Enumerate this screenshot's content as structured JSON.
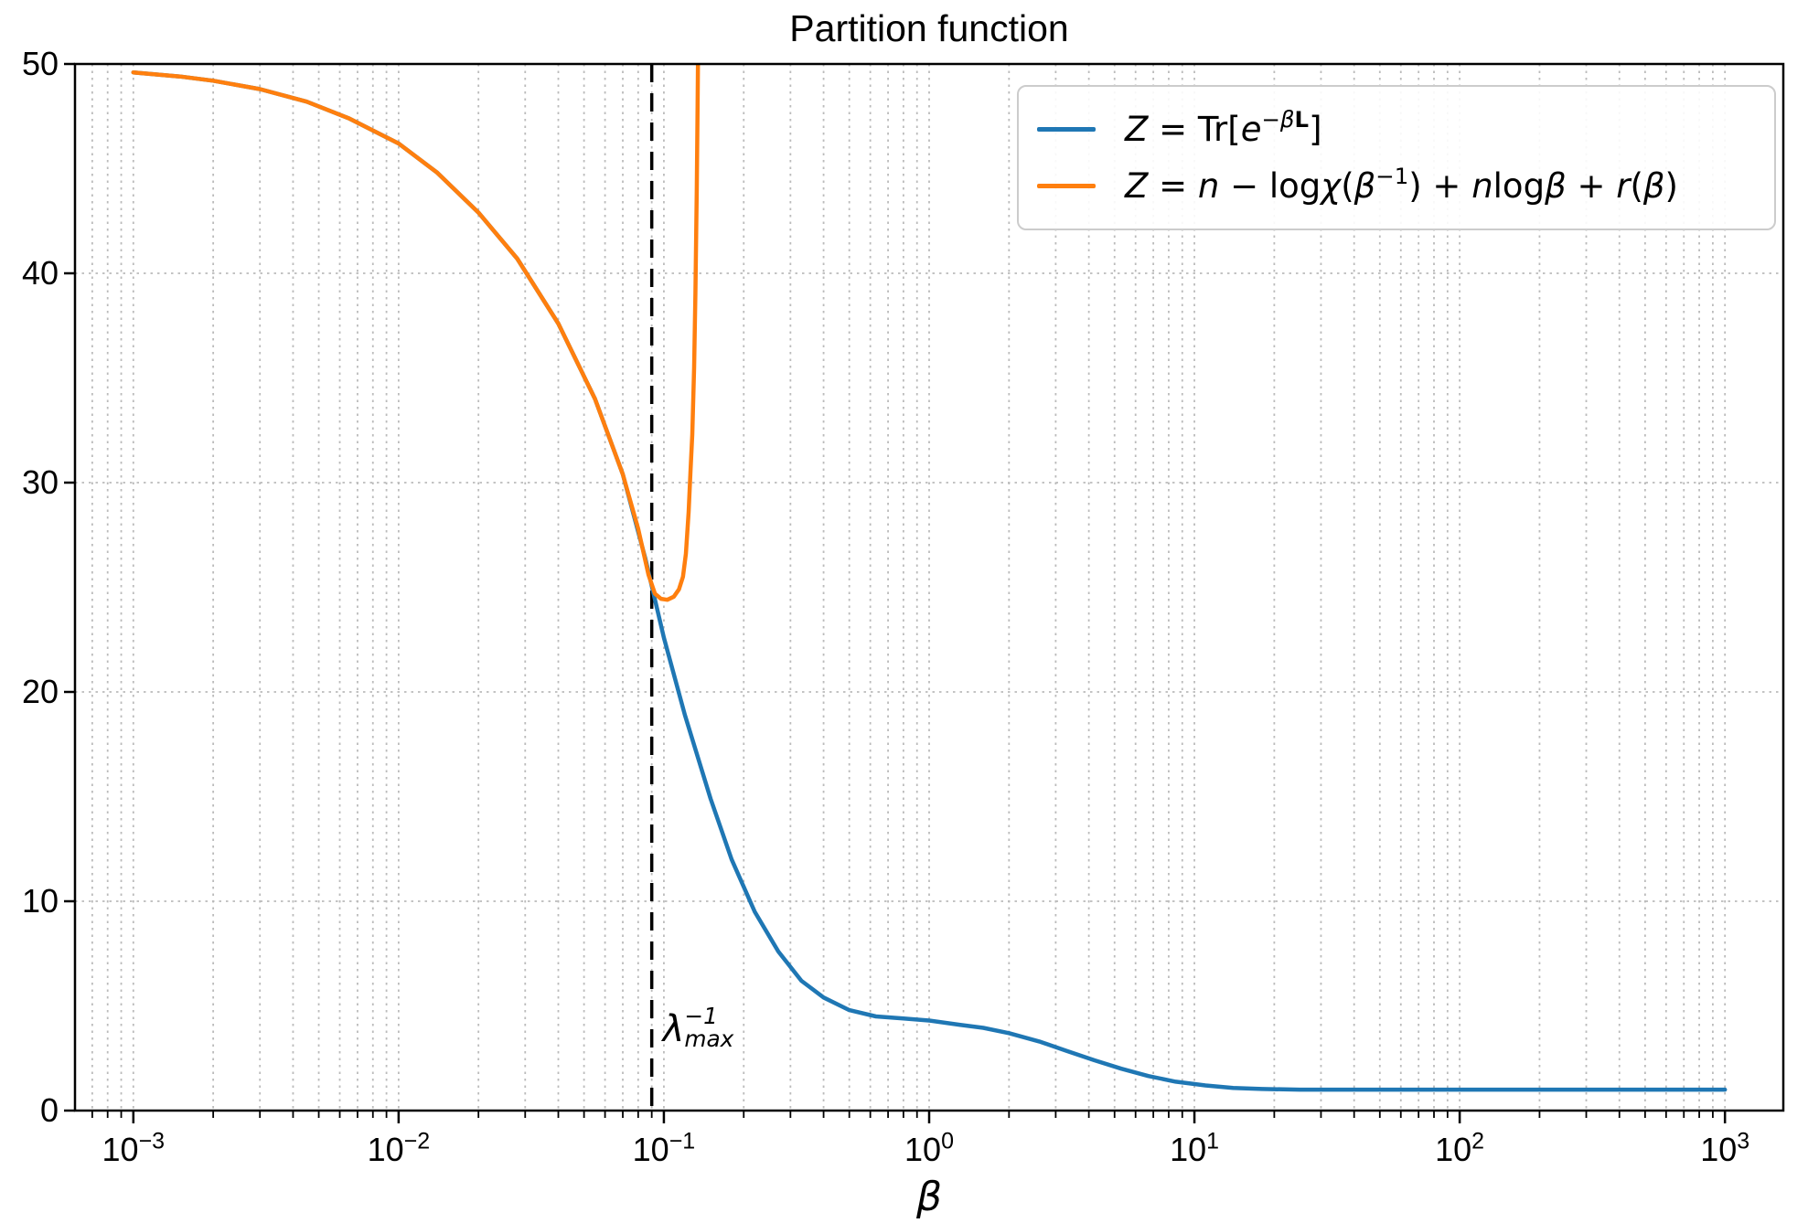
{
  "title": "Partition function",
  "xlabel": "β",
  "colors": {
    "series_blue": "#1f77b4",
    "series_orange": "#ff7f0e",
    "grid": "#bbbbbb",
    "axis": "#000000",
    "vline": "#000000",
    "legend_border": "#cccccc"
  },
  "axes": {
    "x_scale": "log",
    "x_log_min": -3.22,
    "x_log_max": 3.22,
    "y_min": 0,
    "y_max": 50,
    "x_major_ticks": [
      {
        "base": "10",
        "exp": "−3",
        "log": -3
      },
      {
        "base": "10",
        "exp": "−2",
        "log": -2
      },
      {
        "base": "10",
        "exp": "−1",
        "log": -1
      },
      {
        "base": "10",
        "exp": "0",
        "log": 0
      },
      {
        "base": "10",
        "exp": "1",
        "log": 1
      },
      {
        "base": "10",
        "exp": "2",
        "log": 2
      },
      {
        "base": "10",
        "exp": "3",
        "log": 3
      }
    ],
    "y_ticks": [
      "0",
      "10",
      "20",
      "30",
      "40",
      "50"
    ],
    "y_grid_values": [
      10,
      20,
      30,
      40
    ],
    "grid": "both-dotted"
  },
  "legend": {
    "entries": [
      {
        "color_key": "series_blue",
        "plain": "Z = Tr[e^(-βL)]",
        "tokens": [
          {
            "t": "Z",
            "s": "i"
          },
          {
            "t": " = ",
            "s": "u"
          },
          {
            "t": "Tr[",
            "s": "u"
          },
          {
            "t": "e",
            "s": "i"
          },
          {
            "t": "−",
            "s": "su"
          },
          {
            "t": "β",
            "s": "si"
          },
          {
            "t": "L",
            "s": "sb"
          },
          {
            "t": "]",
            "s": "u"
          }
        ]
      },
      {
        "color_key": "series_orange",
        "plain": "Z = n − logχ(β^−1) + nlogβ + r(β)",
        "tokens": [
          {
            "t": "Z",
            "s": "i"
          },
          {
            "t": " = ",
            "s": "u"
          },
          {
            "t": "n",
            "s": "i"
          },
          {
            "t": " − ",
            "s": "u"
          },
          {
            "t": "log",
            "s": "u"
          },
          {
            "t": "χ",
            "s": "i"
          },
          {
            "t": "(",
            "s": "u"
          },
          {
            "t": "β",
            "s": "i"
          },
          {
            "t": "−1",
            "s": "su"
          },
          {
            "t": ")",
            "s": "u"
          },
          {
            "t": " + ",
            "s": "u"
          },
          {
            "t": "n",
            "s": "i"
          },
          {
            "t": "log",
            "s": "u"
          },
          {
            "t": "β",
            "s": "i"
          },
          {
            "t": " + ",
            "s": "u"
          },
          {
            "t": "r",
            "s": "i"
          },
          {
            "t": "(",
            "s": "u"
          },
          {
            "t": "β",
            "s": "i"
          },
          {
            "t": ")",
            "s": "u"
          }
        ]
      }
    ]
  },
  "annotation": {
    "plain": "λ_max^−1",
    "tokens": [
      {
        "t": "λ",
        "s": "i"
      },
      {
        "stack": true,
        "sup": "−1",
        "sub": "max"
      }
    ]
  },
  "chart_data": {
    "type": "line",
    "xscale": "log",
    "xlim": [
      0.001,
      1000
    ],
    "ylim": [
      0,
      50
    ],
    "title": "Partition function",
    "xlabel": "β",
    "ylabel": "",
    "grid": true,
    "legend_position": "upper right",
    "vline": {
      "x": 0.09,
      "style": "dashed",
      "color": "#000000",
      "label": "λ_max^−1"
    },
    "series": [
      {
        "name": "Z = Tr[e^(-βL)]",
        "color": "#1f77b4",
        "points": [
          [
            0.001,
            49.6
          ],
          [
            0.0015,
            49.4
          ],
          [
            0.002,
            49.2
          ],
          [
            0.003,
            48.8
          ],
          [
            0.0045,
            48.2
          ],
          [
            0.0065,
            47.4
          ],
          [
            0.01,
            46.2
          ],
          [
            0.014,
            44.8
          ],
          [
            0.02,
            42.9
          ],
          [
            0.028,
            40.7
          ],
          [
            0.04,
            37.6
          ],
          [
            0.055,
            34.0
          ],
          [
            0.07,
            30.4
          ],
          [
            0.085,
            26.4
          ],
          [
            0.1,
            22.6
          ],
          [
            0.12,
            18.9
          ],
          [
            0.15,
            14.9
          ],
          [
            0.18,
            12.0
          ],
          [
            0.22,
            9.5
          ],
          [
            0.27,
            7.6
          ],
          [
            0.33,
            6.2
          ],
          [
            0.4,
            5.4
          ],
          [
            0.5,
            4.8
          ],
          [
            0.63,
            4.5
          ],
          [
            0.8,
            4.4
          ],
          [
            1.0,
            4.3
          ],
          [
            1.3,
            4.1
          ],
          [
            1.6,
            3.95
          ],
          [
            2.0,
            3.7
          ],
          [
            2.6,
            3.3
          ],
          [
            3.3,
            2.85
          ],
          [
            4.2,
            2.4
          ],
          [
            5.3,
            2.0
          ],
          [
            6.7,
            1.65
          ],
          [
            8.5,
            1.38
          ],
          [
            11,
            1.2
          ],
          [
            14,
            1.08
          ],
          [
            18,
            1.03
          ],
          [
            25,
            1.0
          ],
          [
            40,
            1.0
          ],
          [
            100,
            1.0
          ],
          [
            300,
            1.0
          ],
          [
            1000,
            1.0
          ]
        ]
      },
      {
        "name": "Z = n − logχ(β^−1) + nlogβ + r(β)",
        "color": "#ff7f0e",
        "points": [
          [
            0.001,
            49.6
          ],
          [
            0.0015,
            49.4
          ],
          [
            0.002,
            49.2
          ],
          [
            0.003,
            48.8
          ],
          [
            0.0045,
            48.2
          ],
          [
            0.0065,
            47.4
          ],
          [
            0.01,
            46.2
          ],
          [
            0.014,
            44.8
          ],
          [
            0.02,
            42.9
          ],
          [
            0.028,
            40.7
          ],
          [
            0.04,
            37.6
          ],
          [
            0.055,
            34.0
          ],
          [
            0.07,
            30.4
          ],
          [
            0.08,
            27.8
          ],
          [
            0.0875,
            25.6
          ],
          [
            0.0925,
            24.7
          ],
          [
            0.0975,
            24.45
          ],
          [
            0.103,
            24.4
          ],
          [
            0.109,
            24.55
          ],
          [
            0.114,
            24.9
          ],
          [
            0.118,
            25.5
          ],
          [
            0.121,
            26.6
          ],
          [
            0.124,
            28.6
          ],
          [
            0.126,
            30.6
          ],
          [
            0.128,
            32.3
          ],
          [
            0.13,
            35.5
          ],
          [
            0.1315,
            39.0
          ],
          [
            0.133,
            44.0
          ],
          [
            0.134,
            48.0
          ],
          [
            0.135,
            52.5
          ]
        ]
      }
    ]
  },
  "layout_note": "log-x axis 1e-3..1e3, y 0..50, dashed vertical line at beta=0.09"
}
